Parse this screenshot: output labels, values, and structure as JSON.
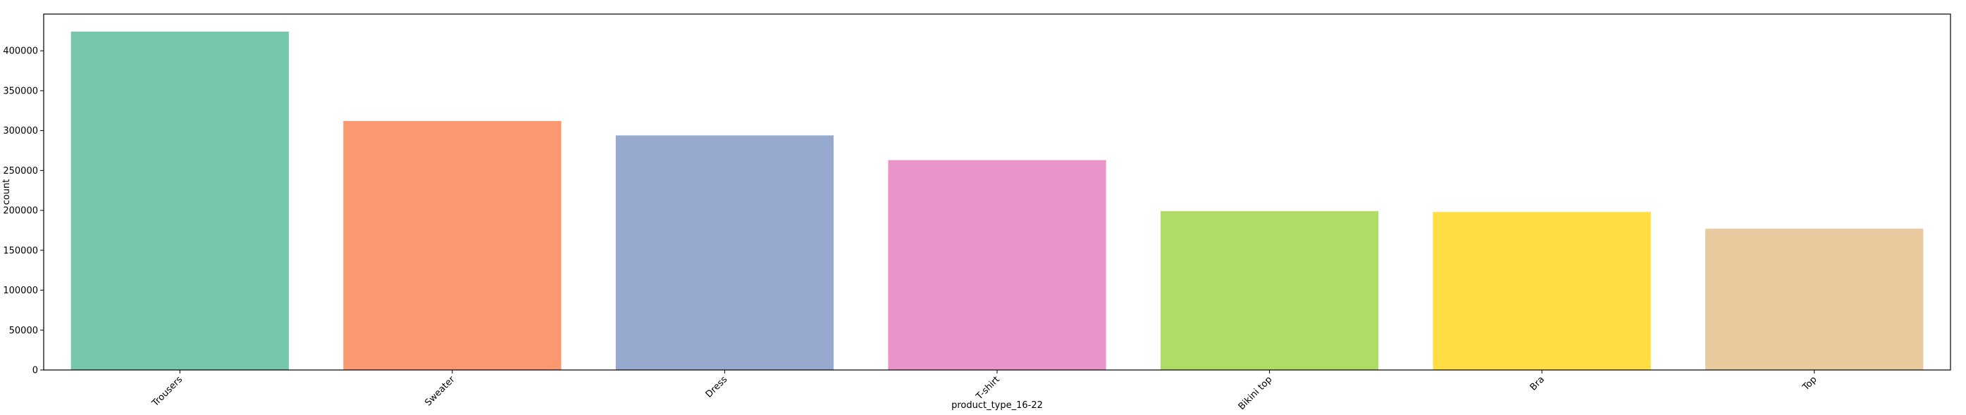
{
  "chart_data": {
    "type": "bar",
    "title": "",
    "xlabel": "product_type_16-22",
    "ylabel": "count",
    "categories": [
      "Trousers",
      "Sweater",
      "Dress",
      "T-shirt",
      "Bikini top",
      "Bra",
      "Top"
    ],
    "values": [
      424000,
      312000,
      294000,
      263000,
      199000,
      198000,
      177000
    ],
    "colors": [
      "#66c2a5",
      "#fc8d62",
      "#8da0cb",
      "#e78ac3",
      "#a6d854",
      "#ffd92f",
      "#e5c494"
    ],
    "bar_alpha": 0.9,
    "ylim": [
      0,
      446000
    ],
    "yticks": [
      0,
      50000,
      100000,
      150000,
      200000,
      250000,
      300000,
      350000,
      400000
    ],
    "ytick_labels": [
      "0",
      "50000",
      "100000",
      "150000",
      "200000",
      "250000",
      "300000",
      "350000",
      "400000"
    ],
    "grid": false,
    "legend": "none"
  }
}
